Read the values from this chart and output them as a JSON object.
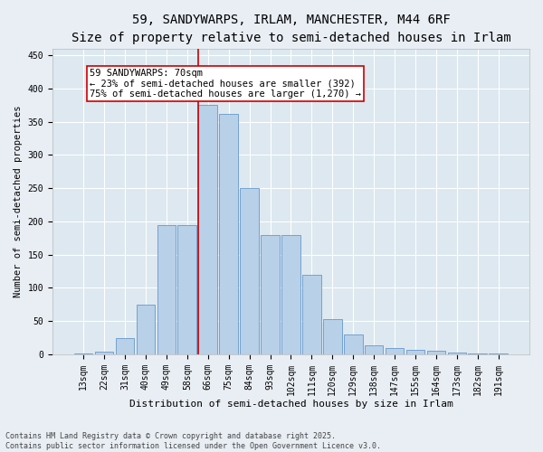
{
  "title": "59, SANDYWARPS, IRLAM, MANCHESTER, M44 6RF",
  "subtitle": "Size of property relative to semi-detached houses in Irlam",
  "xlabel": "Distribution of semi-detached houses by size in Irlam",
  "ylabel": "Number of semi-detached properties",
  "categories": [
    "13sqm",
    "22sqm",
    "31sqm",
    "40sqm",
    "49sqm",
    "58sqm",
    "66sqm",
    "75sqm",
    "84sqm",
    "93sqm",
    "102sqm",
    "111sqm",
    "120sqm",
    "129sqm",
    "138sqm",
    "147sqm",
    "155sqm",
    "164sqm",
    "173sqm",
    "182sqm",
    "191sqm"
  ],
  "values": [
    2,
    4,
    25,
    75,
    195,
    195,
    375,
    362,
    250,
    180,
    180,
    120,
    53,
    30,
    13,
    10,
    7,
    5,
    3,
    2,
    1
  ],
  "bar_color": "#b8d0e8",
  "bar_edgecolor": "#6699cc",
  "marker_label": "59 SANDYWARPS: 70sqm",
  "marker_line_color": "#cc0000",
  "annotation_smaller": "← 23% of semi-detached houses are smaller (392)",
  "annotation_larger": "75% of semi-detached houses are larger (1,270) →",
  "annotation_box_color": "#ffffff",
  "annotation_box_edgecolor": "#cc0000",
  "ylim": [
    0,
    460
  ],
  "yticks": [
    0,
    50,
    100,
    150,
    200,
    250,
    300,
    350,
    400,
    450
  ],
  "background_color": "#dde8f0",
  "fig_background_color": "#e8eef4",
  "grid_color": "#ffffff",
  "footer": "Contains HM Land Registry data © Crown copyright and database right 2025.\nContains public sector information licensed under the Open Government Licence v3.0.",
  "title_fontsize": 10,
  "xlabel_fontsize": 8,
  "ylabel_fontsize": 7.5,
  "tick_fontsize": 7,
  "annotation_fontsize": 7.5,
  "footer_fontsize": 6
}
